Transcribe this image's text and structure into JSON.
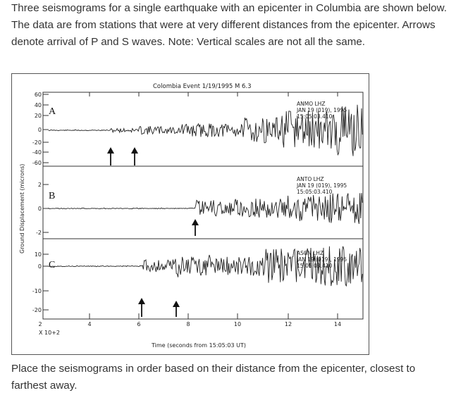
{
  "intro_text": "Three seismograms for a single earthquake with an epicenter in Columbia are shown below. The data are from stations that were at very different distances from the epicenter. Arrows denote arrival of P and S waves. Note: Vertical scales are not all the same.",
  "figure": {
    "title": "Colombia Event 1/19/1995 M 6.3",
    "y_axis_label": "Ground Displacement (microns)",
    "x_axis_label": "Time (seconds from 15:05:03 UT)",
    "x_multiplier": "X 10+2",
    "x_ticks": [
      "2",
      "4",
      "6",
      "8",
      "10",
      "12",
      "14"
    ],
    "traces": [
      {
        "label": "A",
        "station": "ANMO LHZ",
        "date": "JAN 19 (019), 1995",
        "time": "15:05:03.410",
        "y_ticks": [
          "60",
          "40",
          "20",
          "0",
          "-20",
          "-40",
          "-60"
        ]
      },
      {
        "label": "B",
        "station": "ANTO LHZ",
        "date": "JAN 19 (019), 1995",
        "time": "15:05:03.410",
        "y_ticks": [
          "2",
          "0",
          "-2"
        ]
      },
      {
        "label": "C",
        "station": "ASCN LHZ",
        "date": "JAN 19 (019), 1995",
        "time": "15:05:03.410",
        "y_ticks": [
          "10",
          "0",
          "-10",
          "-20"
        ]
      }
    ]
  },
  "question_text": "Place the seismograms in order based on their distance from the epicenter, closest to farthest away."
}
